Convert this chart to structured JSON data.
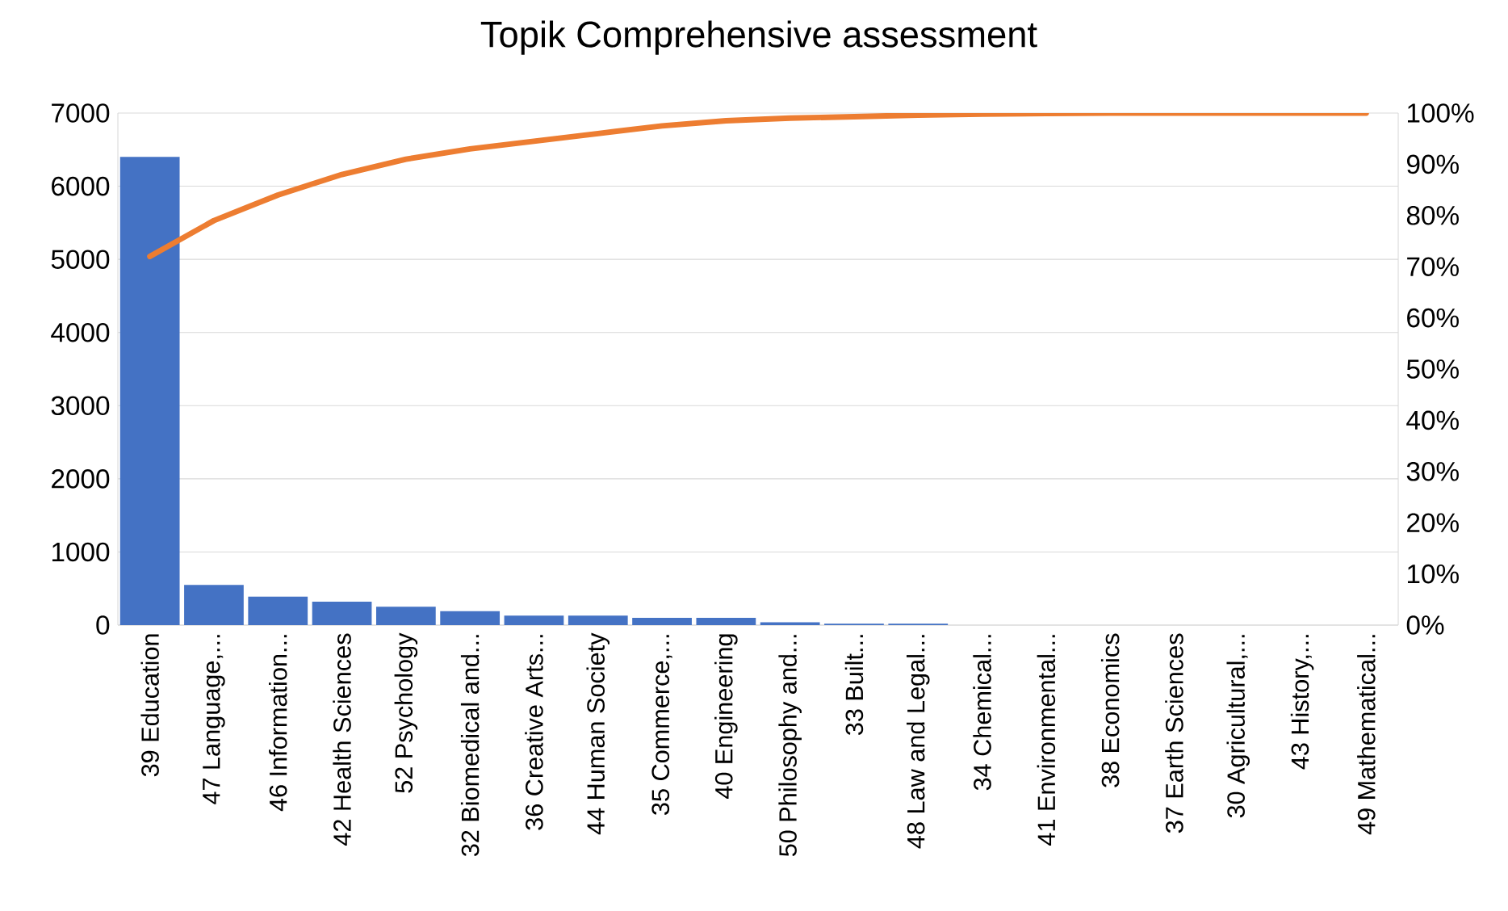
{
  "chart_data": {
    "type": "bar",
    "title": "Topik Comprehensive assessment",
    "categories": [
      "39 Education",
      "47 Language,...",
      "46 Information...",
      "42 Health Sciences",
      "52 Psychology",
      "32 Biomedical and...",
      "36 Creative Arts...",
      "44 Human Society",
      "35 Commerce,...",
      "40 Engineering",
      "50 Philosophy and...",
      "33 Built...",
      "48 Law and Legal...",
      "34 Chemical...",
      "41 Environmental...",
      "38 Economics",
      "37 Earth Sciences",
      "30 Agricultural,...",
      "43 History,...",
      "49 Mathematical..."
    ],
    "series": [
      {
        "color": "#4472c4",
        "values": [
          6400,
          550,
          390,
          320,
          250,
          190,
          130,
          130,
          100,
          100,
          40,
          20,
          20,
          0,
          0,
          0,
          0,
          0,
          0,
          0
        ]
      },
      {
        "type": "line",
        "axis": "y2",
        "color": "#ed7d31",
        "values": [
          72,
          79,
          84,
          88,
          91,
          93,
          94.5,
          96,
          97.5,
          98.5,
          99,
          99.3,
          99.6,
          99.8,
          99.9,
          100,
          100,
          100,
          100,
          100
        ]
      }
    ],
    "ylim": [
      0,
      7000
    ],
    "yticks": [
      0,
      1000,
      2000,
      3000,
      4000,
      5000,
      6000,
      7000
    ],
    "y2lim": [
      0,
      100
    ],
    "y2ticks": [
      {
        "value": 0,
        "label": "0%"
      },
      {
        "value": 10,
        "label": "10%"
      },
      {
        "value": 20,
        "label": "20%"
      },
      {
        "value": 30,
        "label": "30%"
      },
      {
        "value": 40,
        "label": "40%"
      },
      {
        "value": 50,
        "label": "50%"
      },
      {
        "value": 60,
        "label": "60%"
      },
      {
        "value": 70,
        "label": "70%"
      },
      {
        "value": 80,
        "label": "80%"
      },
      {
        "value": 90,
        "label": "90%"
      },
      {
        "value": 100,
        "label": "100%"
      }
    ],
    "grid": "y"
  }
}
